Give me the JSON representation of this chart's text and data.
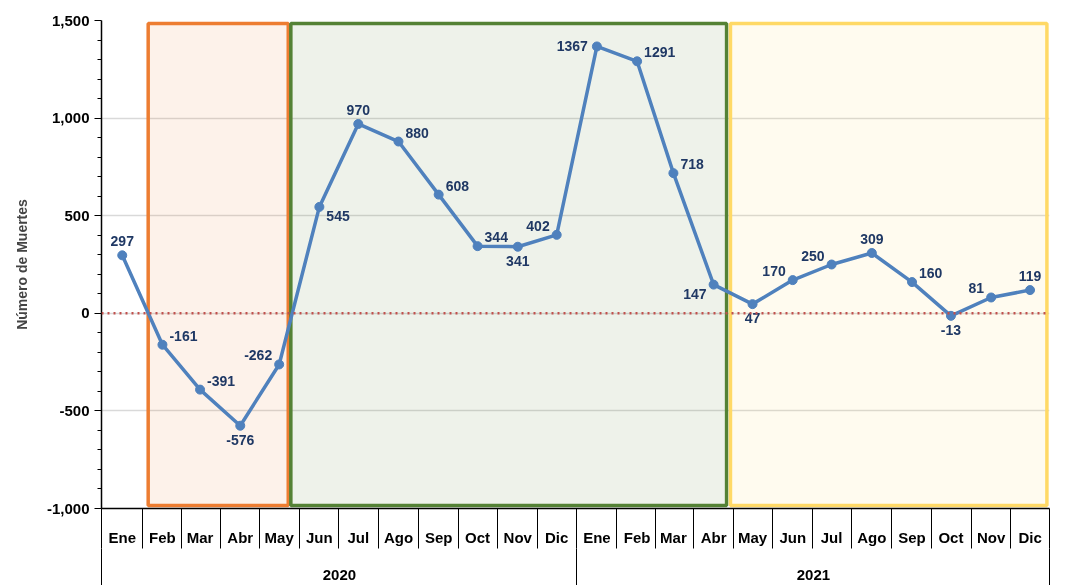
{
  "chart_data": {
    "type": "line",
    "ylabel": "Número de Muertes",
    "x": [
      "2020-01",
      "2020-02",
      "2020-03",
      "2020-04",
      "2020-05",
      "2020-06",
      "2020-07",
      "2020-08",
      "2020-09",
      "2020-10",
      "2020-11",
      "2020-12",
      "2021-01",
      "2021-02",
      "2021-03",
      "2021-04",
      "2021-05",
      "2021-06",
      "2021-07",
      "2021-08",
      "2021-09",
      "2021-10",
      "2021-11",
      "2021-12"
    ],
    "values": [
      297,
      -161,
      -391,
      -576,
      -262,
      545,
      970,
      880,
      608,
      344,
      341,
      402,
      1367,
      1291,
      718,
      147,
      47,
      170,
      250,
      309,
      160,
      -13,
      81,
      119
    ],
    "color": "#4f81bd",
    "marker": "circle",
    "line_style": "solid",
    "data_labels": true,
    "xlim": [
      "2019-12-16",
      "2021-12-16"
    ],
    "xticks": [
      {
        "value": "2020-01",
        "label": "Ene"
      },
      {
        "value": "2020-02",
        "label": "Feb"
      },
      {
        "value": "2020-03",
        "label": "Mar"
      },
      {
        "value": "2020-04",
        "label": "Abr"
      },
      {
        "value": "2020-05",
        "label": "May"
      },
      {
        "value": "2020-06",
        "label": "Jun"
      },
      {
        "value": "2020-07",
        "label": "Jul"
      },
      {
        "value": "2020-08",
        "label": "Ago"
      },
      {
        "value": "2020-09",
        "label": "Sep"
      },
      {
        "value": "2020-10",
        "label": "Oct"
      },
      {
        "value": "2020-11",
        "label": "Nov"
      },
      {
        "value": "2020-12",
        "label": "Dic"
      },
      {
        "value": "2021-01",
        "label": "Ene"
      },
      {
        "value": "2021-02",
        "label": "Feb"
      },
      {
        "value": "2021-03",
        "label": "Mar"
      },
      {
        "value": "2021-04",
        "label": "Abr"
      },
      {
        "value": "2021-05",
        "label": "May"
      },
      {
        "value": "2021-06",
        "label": "Jun"
      },
      {
        "value": "2021-07",
        "label": "Jul"
      },
      {
        "value": "2021-08",
        "label": "Ago"
      },
      {
        "value": "2021-09",
        "label": "Sep"
      },
      {
        "value": "2021-10",
        "label": "Oct"
      },
      {
        "value": "2021-11",
        "label": "Nov"
      },
      {
        "value": "2021-12",
        "label": "Dic"
      }
    ],
    "ylim": [
      -1000,
      1500
    ],
    "yticks": [
      {
        "value": -1000,
        "label": "-1,000"
      },
      {
        "value": -900,
        "label": null
      },
      {
        "value": -800,
        "label": null
      },
      {
        "value": -700,
        "label": null
      },
      {
        "value": -600,
        "label": null
      },
      -500,
      {
        "value": -400,
        "label": null
      },
      {
        "value": -300,
        "label": null
      },
      {
        "value": -200,
        "label": null
      },
      {
        "value": -100,
        "label": null
      },
      0,
      {
        "value": 100,
        "label": null
      },
      {
        "value": 200,
        "label": null
      },
      {
        "value": 300,
        "label": null
      },
      {
        "value": 400,
        "label": null
      },
      500,
      {
        "value": 600,
        "label": null
      },
      {
        "value": 700,
        "label": null
      },
      {
        "value": 800,
        "label": null
      },
      {
        "value": 900,
        "label": null
      },
      {
        "value": 1000,
        "label": "1,000"
      },
      {
        "value": 1100,
        "label": null
      },
      {
        "value": 1200,
        "label": null
      },
      {
        "value": 1300,
        "label": null
      },
      {
        "value": 1400,
        "label": null
      },
      {
        "value": 1500,
        "label": "1,500"
      }
    ],
    "grid": "y",
    "ref_lines": [
      {
        "axis": "y",
        "value": 0,
        "color": "#c0504d",
        "line_style": "dotted"
      }
    ],
    "bands": [
      {
        "axis": "x",
        "from": "2020-01-21",
        "to": "2020-05-08",
        "color": "#ed7d31"
      },
      {
        "axis": "x",
        "from": "2020-05-10",
        "to": "2021-04-11",
        "color": "#548235"
      },
      {
        "axis": "x",
        "from": "2021-04-14",
        "to": "2021-12-14",
        "color": "#ffd966"
      }
    ],
    "annotations": [
      "2020",
      "2021"
    ]
  }
}
